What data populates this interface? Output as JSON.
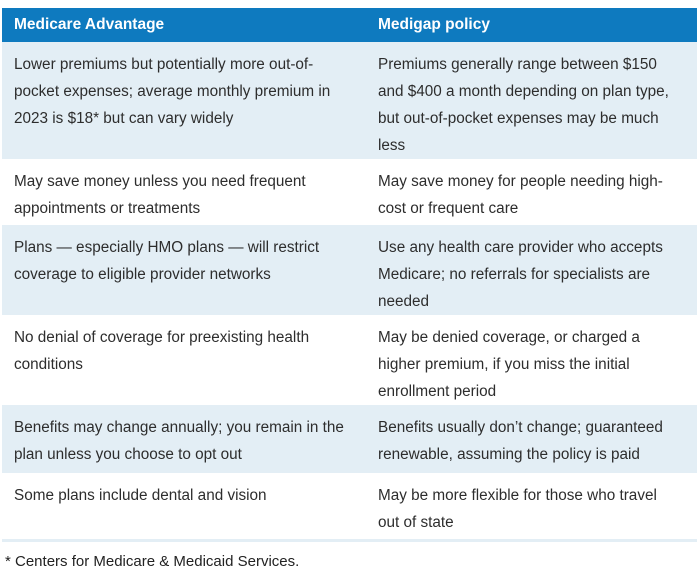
{
  "chart_data": {
    "type": "table",
    "columns": [
      "Medicare Advantage",
      "Medigap policy"
    ],
    "rows": [
      [
        "Lower premiums but potentially more out-of-pocket expenses; average monthly premium in 2023 is $18* but can vary widely",
        "Premiums generally range between $150 and $400 a month depending on plan type, but out-of-pocket expenses may be much less"
      ],
      [
        "May save money unless you need frequent appointments or treatments",
        "May save money for people needing high-cost or frequent care"
      ],
      [
        "Plans — especially HMO plans — will restrict coverage to eligible provider networks",
        "Use any health care provider who accepts Medicare; no referrals for specialists are needed"
      ],
      [
        "No denial of coverage for preexisting health conditions",
        "May be denied coverage, or charged a higher premium, if you miss the initial enrollment period"
      ],
      [
        "Benefits may change annually; you remain in the plan unless you choose to opt out",
        "Benefits usually don’t change; guaranteed renewable, assuming the policy is paid"
      ],
      [
        "Some plans include dental and vision",
        "May be more flexible for those who travel out of state"
      ]
    ],
    "footnote": "* Centers for Medicare & Medicaid Services.",
    "layout": {
      "grid": false,
      "legend_position": "none",
      "striped_row_indices": [
        0,
        2,
        4
      ],
      "header_style": "solid-blue"
    }
  },
  "colors": {
    "header_bg": "#0E7ABF",
    "header_text": "#FFFFFF",
    "stripe_bg": "#E3EEF5",
    "body_text": "#2D2D2D",
    "footnote_text": "#222222"
  }
}
